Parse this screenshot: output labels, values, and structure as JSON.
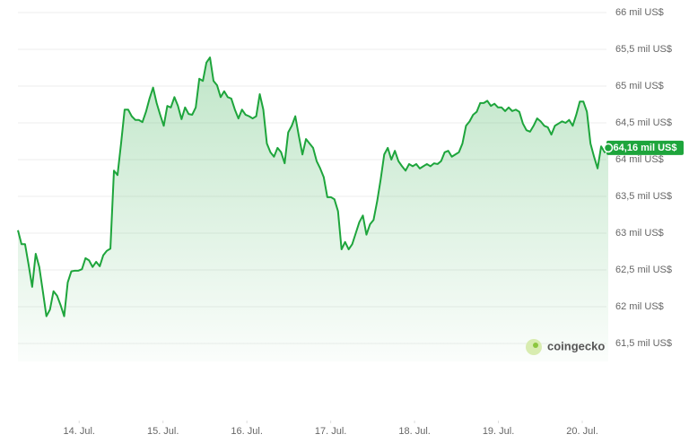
{
  "chart_data": {
    "type": "line",
    "color": "#1ea53c",
    "grid": true,
    "xlim": [
      13.27,
      20.31
    ],
    "xticks": [
      {
        "value": 14,
        "label": "14. Jul."
      },
      {
        "value": 15,
        "label": "15. Jul."
      },
      {
        "value": 16,
        "label": "16. Jul."
      },
      {
        "value": 17,
        "label": "17. Jul."
      },
      {
        "value": 18,
        "label": "18. Jul."
      },
      {
        "value": 19,
        "label": "19. Jul."
      },
      {
        "value": 20,
        "label": "20. Jul."
      }
    ],
    "ylim": [
      61.5,
      66
    ],
    "yticks": [
      {
        "value": 61.5,
        "label": "61,5 mil US$"
      },
      {
        "value": 62,
        "label": "62 mil US$"
      },
      {
        "value": 62.5,
        "label": "62,5 mil US$"
      },
      {
        "value": 63,
        "label": "63 mil US$"
      },
      {
        "value": 63.5,
        "label": "63,5 mil US$"
      },
      {
        "value": 64,
        "label": "64 mil US$"
      },
      {
        "value": 64.5,
        "label": "64,5 mil US$"
      },
      {
        "value": 65,
        "label": "65 mil US$"
      },
      {
        "value": 65.5,
        "label": "65,5 mil US$"
      },
      {
        "value": 66,
        "label": "66 mil US$"
      }
    ],
    "values": [
      63.04,
      62.85,
      62.85,
      62.57,
      62.27,
      62.72,
      62.54,
      62.21,
      61.87,
      61.96,
      62.21,
      62.15,
      62.02,
      61.87,
      62.33,
      62.48,
      62.49,
      62.49,
      62.51,
      62.66,
      62.63,
      62.54,
      62.61,
      62.55,
      62.7,
      62.76,
      62.79,
      63.85,
      63.79,
      64.22,
      64.68,
      64.68,
      64.59,
      64.54,
      64.54,
      64.51,
      64.65,
      64.83,
      64.98,
      64.77,
      64.61,
      64.46,
      64.73,
      64.71,
      64.85,
      64.73,
      64.55,
      64.71,
      64.62,
      64.61,
      64.71,
      65.1,
      65.07,
      65.32,
      65.39,
      65.07,
      65.01,
      64.85,
      64.93,
      64.85,
      64.83,
      64.68,
      64.56,
      64.68,
      64.61,
      64.59,
      64.56,
      64.59,
      64.89,
      64.68,
      64.22,
      64.1,
      64.04,
      64.16,
      64.1,
      63.95,
      64.37,
      64.46,
      64.59,
      64.32,
      64.07,
      64.28,
      64.22,
      64.16,
      63.98,
      63.88,
      63.76,
      63.49,
      63.49,
      63.46,
      63.3,
      62.78,
      62.88,
      62.78,
      62.85,
      63.0,
      63.15,
      63.24,
      62.98,
      63.12,
      63.18,
      63.43,
      63.73,
      64.07,
      64.16,
      64.0,
      64.12,
      63.98,
      63.91,
      63.85,
      63.94,
      63.91,
      63.94,
      63.88,
      63.91,
      63.94,
      63.91,
      63.95,
      63.94,
      63.98,
      64.1,
      64.12,
      64.04,
      64.07,
      64.1,
      64.22,
      64.46,
      64.52,
      64.61,
      64.65,
      64.77,
      64.77,
      64.8,
      64.73,
      64.76,
      64.71,
      64.71,
      64.66,
      64.71,
      64.66,
      64.68,
      64.65,
      64.49,
      64.4,
      64.38,
      64.46,
      64.56,
      64.52,
      64.46,
      64.44,
      64.34,
      64.46,
      64.49,
      64.52,
      64.5,
      64.54,
      64.46,
      64.61,
      64.79,
      64.79,
      64.65,
      64.22,
      64.04,
      63.88,
      64.18,
      64.1,
      64.16
    ],
    "current_price": {
      "value": 64.16,
      "label": "64,16 mil US$"
    },
    "watermark": "coingecko"
  }
}
